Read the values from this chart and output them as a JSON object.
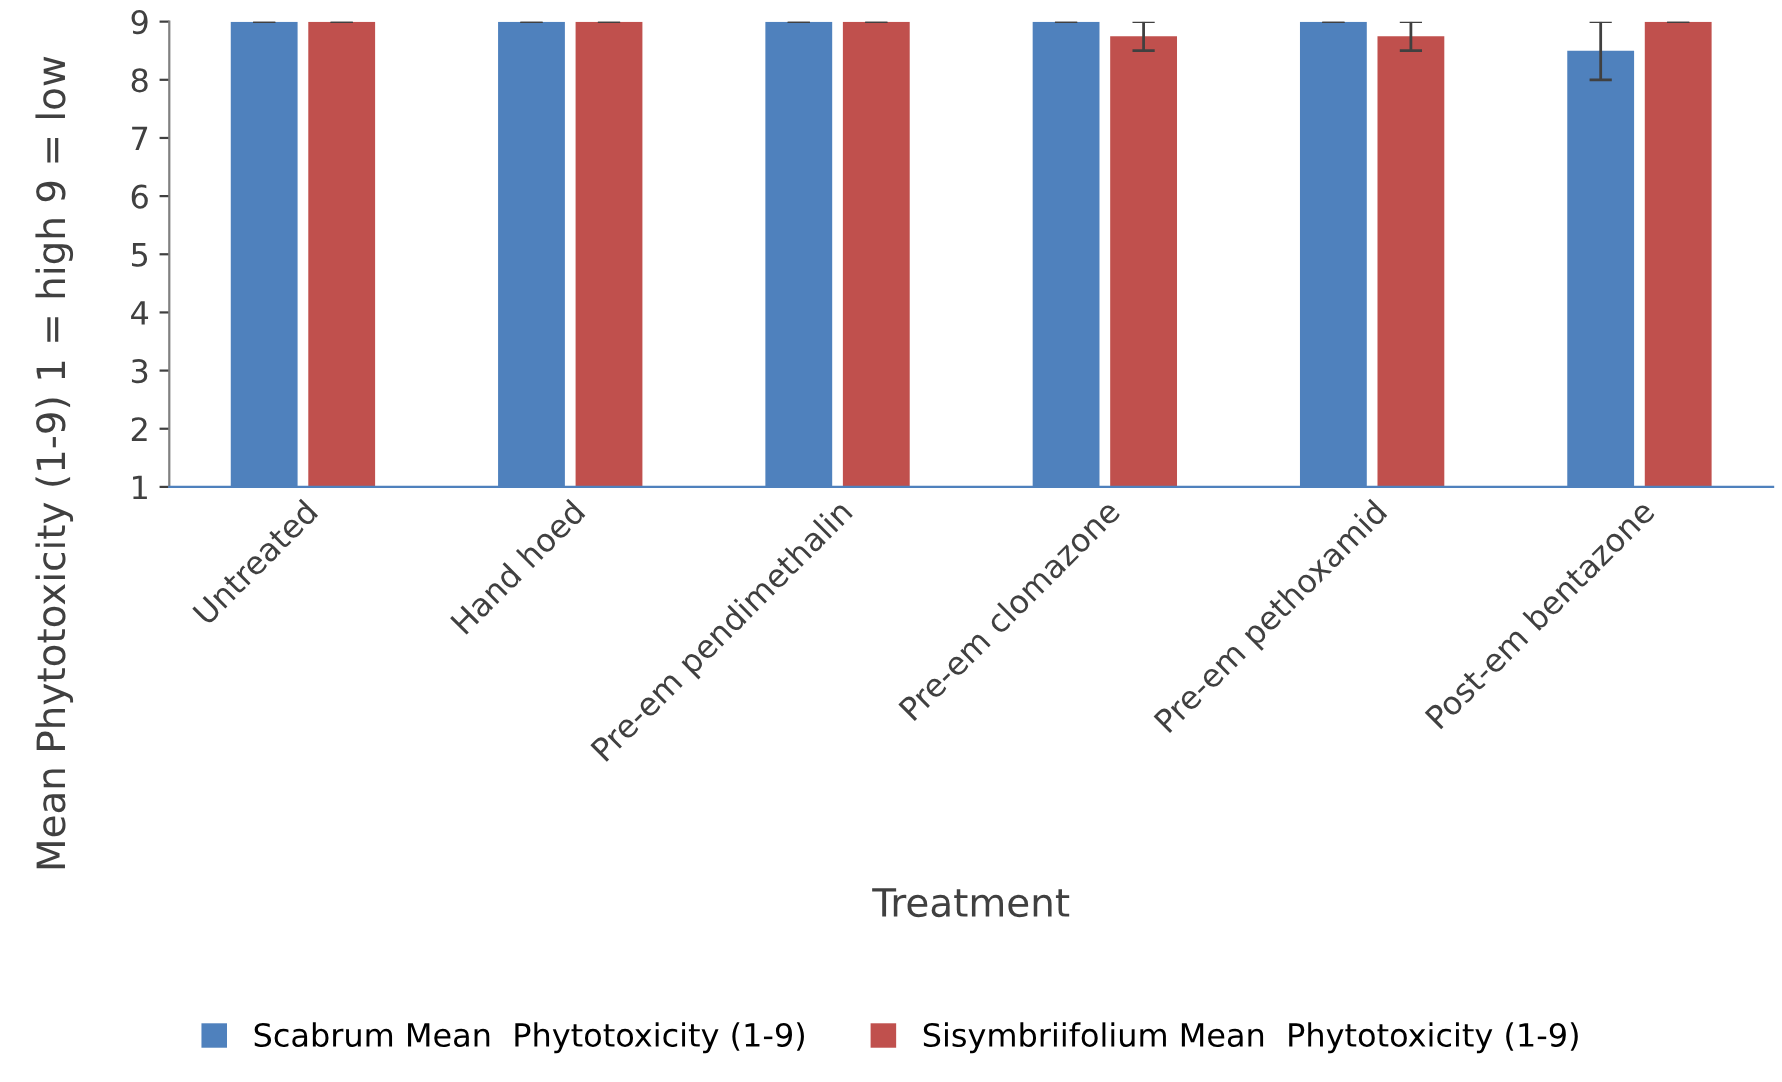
{
  "chart_data": {
    "type": "bar",
    "xlabel": "Treatment",
    "ylabel": "Mean Phytotoxicity (1-9) 1 = high 9 = low",
    "categories": [
      "Untreated",
      "Hand hoed",
      "Pre-em pendimethalin",
      "Pre-em clomazone",
      "Pre-em pethoxamid",
      "Post-em bentazone"
    ],
    "series": [
      {
        "name": "Scabrum Mean  Phytotoxicity (1-9)",
        "color": "#4f81bd",
        "values": [
          9,
          9,
          9,
          9,
          9,
          8.5
        ],
        "errors": [
          0,
          0,
          0,
          0,
          0,
          0.5
        ]
      },
      {
        "name": "Sisymbriifolium Mean  Phytotoxicity (1-9)",
        "color": "#c0504d",
        "values": [
          9,
          9,
          9,
          8.75,
          8.75,
          9
        ],
        "errors": [
          0,
          0,
          0,
          0.25,
          0.25,
          0
        ]
      }
    ],
    "ylim": [
      1,
      9
    ],
    "yticks": [
      1,
      2,
      3,
      4,
      5,
      6,
      7,
      8,
      9
    ],
    "grid": false,
    "legend": "bottom"
  }
}
